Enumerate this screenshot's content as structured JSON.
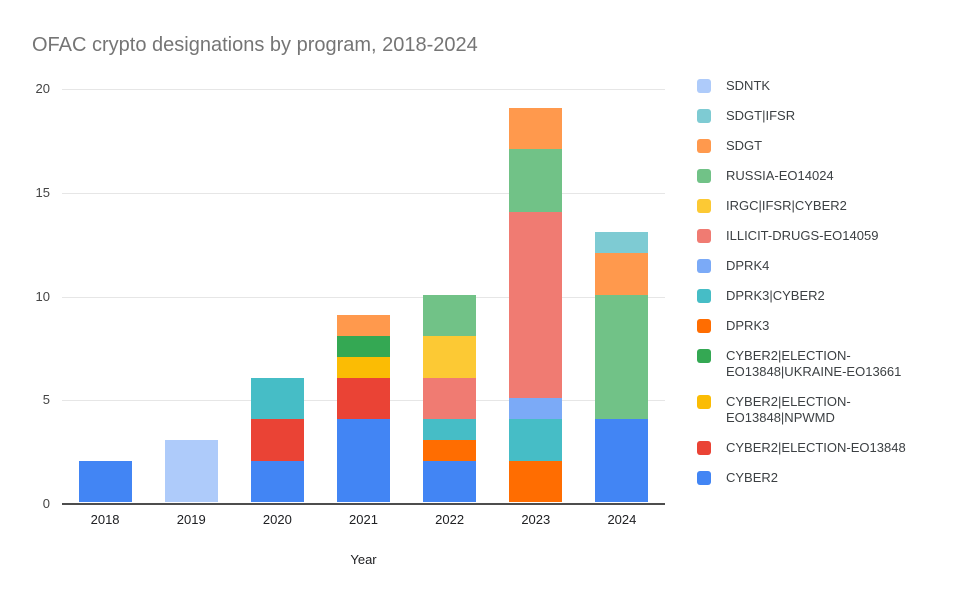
{
  "title": "OFAC crypto designations by program, 2018-2024",
  "colors": {
    "background": "#FFFFFF",
    "title_text": "#757575",
    "axis_text": "#444444",
    "category_text": "#202124",
    "legend_text": "#3C4043",
    "gridline": "#E6E6E6",
    "baseline": "#4D4D4D"
  },
  "chart_data": {
    "type": "bar",
    "stacked": true,
    "title": "OFAC crypto designations by program, 2018-2024",
    "xlabel": "Year",
    "ylabel": "",
    "ylim": [
      0,
      20
    ],
    "yticks": [
      0,
      5,
      10,
      15,
      20
    ],
    "grid": true,
    "legend_position": "right",
    "legend_order": "reverse-of-stack (top of stack listed first)",
    "categories": [
      "2018",
      "2019",
      "2020",
      "2021",
      "2022",
      "2023",
      "2024"
    ],
    "series": [
      {
        "name": "CYBER2",
        "color": "#4285F4",
        "values": [
          2,
          0,
          2,
          4,
          2,
          0,
          4
        ]
      },
      {
        "name": "CYBER2|ELECTION-EO13848",
        "color": "#EA4335",
        "values": [
          0,
          0,
          2,
          2,
          0,
          0,
          0
        ]
      },
      {
        "name": "CYBER2|ELECTION-EO13848|NPWMD",
        "color": "#FBBC04",
        "values": [
          0,
          0,
          0,
          1,
          0,
          0,
          0
        ]
      },
      {
        "name": "CYBER2|ELECTION-EO13848|UKRAINE-EO13661",
        "color": "#34A853",
        "values": [
          0,
          0,
          0,
          1,
          0,
          0,
          0
        ]
      },
      {
        "name": "DPRK3",
        "color": "#FF6D01",
        "values": [
          0,
          0,
          0,
          0,
          1,
          2,
          0
        ]
      },
      {
        "name": "DPRK3|CYBER2",
        "color": "#46BDC6",
        "values": [
          0,
          0,
          2,
          0,
          1,
          2,
          0
        ]
      },
      {
        "name": "DPRK4",
        "color": "#7BAAF7",
        "values": [
          0,
          0,
          0,
          0,
          0,
          1,
          0
        ]
      },
      {
        "name": "ILLICIT-DRUGS-EO14059",
        "color": "#F07B72",
        "values": [
          0,
          0,
          0,
          0,
          2,
          9,
          0
        ]
      },
      {
        "name": "IRGC|IFSR|CYBER2",
        "color": "#FCC934",
        "values": [
          0,
          0,
          0,
          0,
          2,
          0,
          0
        ]
      },
      {
        "name": "RUSSIA-EO14024",
        "color": "#71C287",
        "values": [
          0,
          0,
          0,
          0,
          2,
          3,
          6
        ]
      },
      {
        "name": "SDGT",
        "color": "#FF994D",
        "values": [
          0,
          0,
          0,
          1,
          0,
          2,
          2
        ]
      },
      {
        "name": "SDGT|IFSR",
        "color": "#7ECBD3",
        "values": [
          0,
          0,
          0,
          0,
          0,
          0,
          1
        ]
      },
      {
        "name": "SDNTK",
        "color": "#AECBFA",
        "values": [
          0,
          3,
          0,
          0,
          0,
          0,
          0
        ]
      }
    ],
    "totals_by_year": [
      2,
      3,
      6,
      9,
      10,
      19,
      13
    ]
  }
}
